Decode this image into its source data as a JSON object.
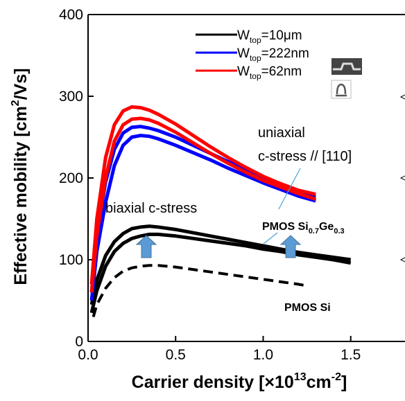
{
  "chart_data": {
    "type": "line",
    "x_label": [
      "Carrier density [×10",
      "13",
      "cm",
      "-2",
      "]"
    ],
    "y_label": [
      "Effective mobility [cm",
      "2",
      "/Vs]"
    ],
    "xlim": [
      0,
      1.81
    ],
    "ylim": [
      0,
      400
    ],
    "xticks": [
      {
        "value": 0,
        "label": "0.0"
      },
      0.5,
      {
        "value": 1,
        "label": "1.0"
      },
      1.5
    ],
    "yticks": [
      0,
      100,
      200,
      300,
      400
    ],
    "series": [
      {
        "name": [
          "W",
          "top",
          "=10μm"
        ],
        "color": "#000000",
        "x": [
          0.02,
          0.05,
          0.1,
          0.15,
          0.2,
          0.25,
          0.3,
          0.35,
          0.4,
          0.5,
          0.6,
          0.7,
          0.8,
          0.9,
          1.0,
          1.1,
          1.2,
          1.3,
          1.4,
          1.5
        ],
        "curves": [
          [
            45,
            75,
            105,
            122,
            132,
            138,
            140,
            141,
            140,
            137,
            133,
            129,
            125,
            121,
            117,
            113,
            109,
            106,
            103,
            100
          ],
          [
            35,
            62,
            92,
            110,
            120,
            126,
            129,
            131,
            131,
            129,
            126,
            123,
            120,
            117,
            113,
            110,
            106,
            103,
            100,
            96
          ]
        ]
      },
      {
        "name": [
          "W",
          "top",
          "=222nm"
        ],
        "color": "#0000ff",
        "x": [
          0.02,
          0.05,
          0.1,
          0.15,
          0.2,
          0.25,
          0.3,
          0.35,
          0.4,
          0.5,
          0.6,
          0.7,
          0.8,
          0.9,
          1.0,
          1.1,
          1.2,
          1.3
        ],
        "curves": [
          [
            60,
            130,
            195,
            235,
            255,
            262,
            263,
            261,
            258,
            250,
            240,
            230,
            220,
            210,
            200,
            192,
            183,
            177
          ],
          [
            50,
            110,
            170,
            215,
            240,
            250,
            252,
            251,
            248,
            240,
            231,
            222,
            212,
            203,
            194,
            186,
            178,
            172
          ]
        ]
      },
      {
        "name": [
          "W",
          "top",
          "=62nm"
        ],
        "color": "#ff0000",
        "x": [
          0.02,
          0.05,
          0.1,
          0.15,
          0.2,
          0.25,
          0.3,
          0.35,
          0.4,
          0.5,
          0.6,
          0.7,
          0.8,
          0.9,
          1.0,
          1.1,
          1.2,
          1.3
        ],
        "curves": [
          [
            70,
            150,
            225,
            265,
            282,
            287,
            286,
            283,
            278,
            266,
            252,
            238,
            225,
            213,
            202,
            193,
            185,
            180
          ],
          [
            60,
            130,
            200,
            245,
            265,
            272,
            273,
            271,
            267,
            256,
            243,
            230,
            218,
            207,
            197,
            189,
            181,
            174
          ]
        ]
      },
      {
        "color": "#000000",
        "dashed": true,
        "x": [
          0.03,
          0.05,
          0.1,
          0.15,
          0.2,
          0.25,
          0.3,
          0.35,
          0.4,
          0.5,
          0.6,
          0.7,
          0.8,
          0.9,
          1.0,
          1.1,
          1.2,
          1.25
        ],
        "curves": [
          [
            30,
            45,
            65,
            78,
            86,
            90,
            92,
            93,
            93,
            91,
            88,
            85,
            82,
            79,
            76,
            73,
            70,
            68
          ]
        ]
      }
    ],
    "annotations": {
      "uniaxial": "uniaxial",
      "c_stress": "c-stress // [110]",
      "biaxial": "biaxial c-stress",
      "sige": [
        "PMOS Si",
        "0.7",
        "Ge",
        "0.3"
      ],
      "si": "PMOS Si"
    }
  }
}
